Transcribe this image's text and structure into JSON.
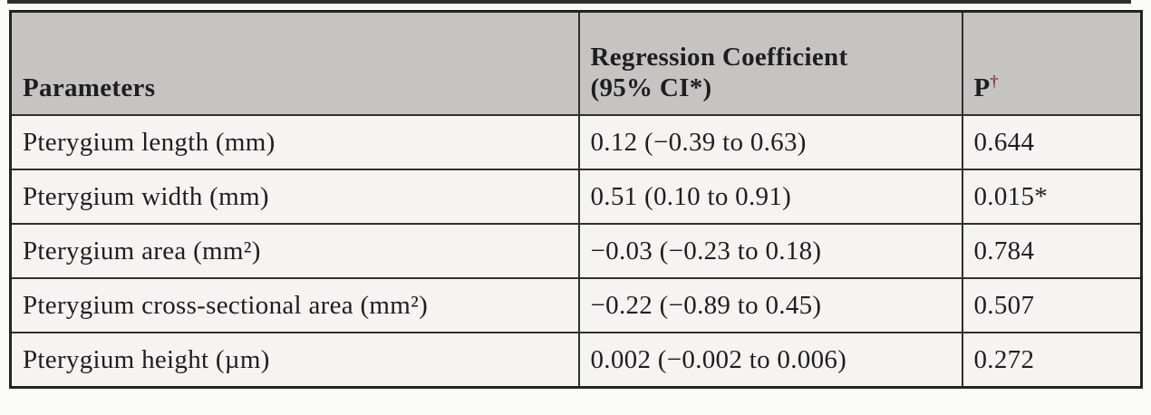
{
  "page": {
    "background": "#fbfbfa",
    "top_strip_color": "#2e2e2e"
  },
  "table": {
    "header": {
      "col1": "Parameters",
      "col2_line1": "Regression Coefficient",
      "col2_line2": "(95% CI*)",
      "p_label": "P",
      "p_dagger": "†"
    },
    "rows": [
      {
        "parameter": "Pterygium length (mm)",
        "coefficient": "0.12 (−0.39 to 0.63)",
        "p": "0.644"
      },
      {
        "parameter": "Pterygium width (mm)",
        "coefficient": "0.51 (0.10 to 0.91)",
        "p": "0.015*"
      },
      {
        "parameter": "Pterygium area (mm²)",
        "coefficient": "−0.03 (−0.23 to 0.18)",
        "p": "0.784"
      },
      {
        "parameter": "Pterygium cross-sectional area (mm²)",
        "coefficient": "−0.22 (−0.89 to 0.45)",
        "p": "0.507"
      },
      {
        "parameter": "Pterygium height (µm)",
        "coefficient": "0.002 (−0.002 to 0.006)",
        "p": "0.272"
      }
    ],
    "colors": {
      "header_background": "#c5c4c2",
      "body_background": "#f5f4f2",
      "border": "#2f2f2f",
      "text": "#1e1e22",
      "dagger": "#8b4254"
    }
  },
  "chart_data": {
    "type": "table",
    "title": "",
    "columns": [
      "Parameters",
      "Regression Coefficient (95% CI*)",
      "P†"
    ],
    "rows": [
      [
        "Pterygium length (mm)",
        "0.12 (−0.39 to 0.63)",
        "0.644"
      ],
      [
        "Pterygium width (mm)",
        "0.51 (0.10 to 0.91)",
        "0.015*"
      ],
      [
        "Pterygium area (mm²)",
        "−0.03 (−0.23 to 0.18)",
        "0.784"
      ],
      [
        "Pterygium cross-sectional area (mm²)",
        "−0.22 (−0.89 to 0.45)",
        "0.507"
      ],
      [
        "Pterygium height (µm)",
        "0.002 (−0.002 to 0.006)",
        "0.272"
      ]
    ]
  }
}
